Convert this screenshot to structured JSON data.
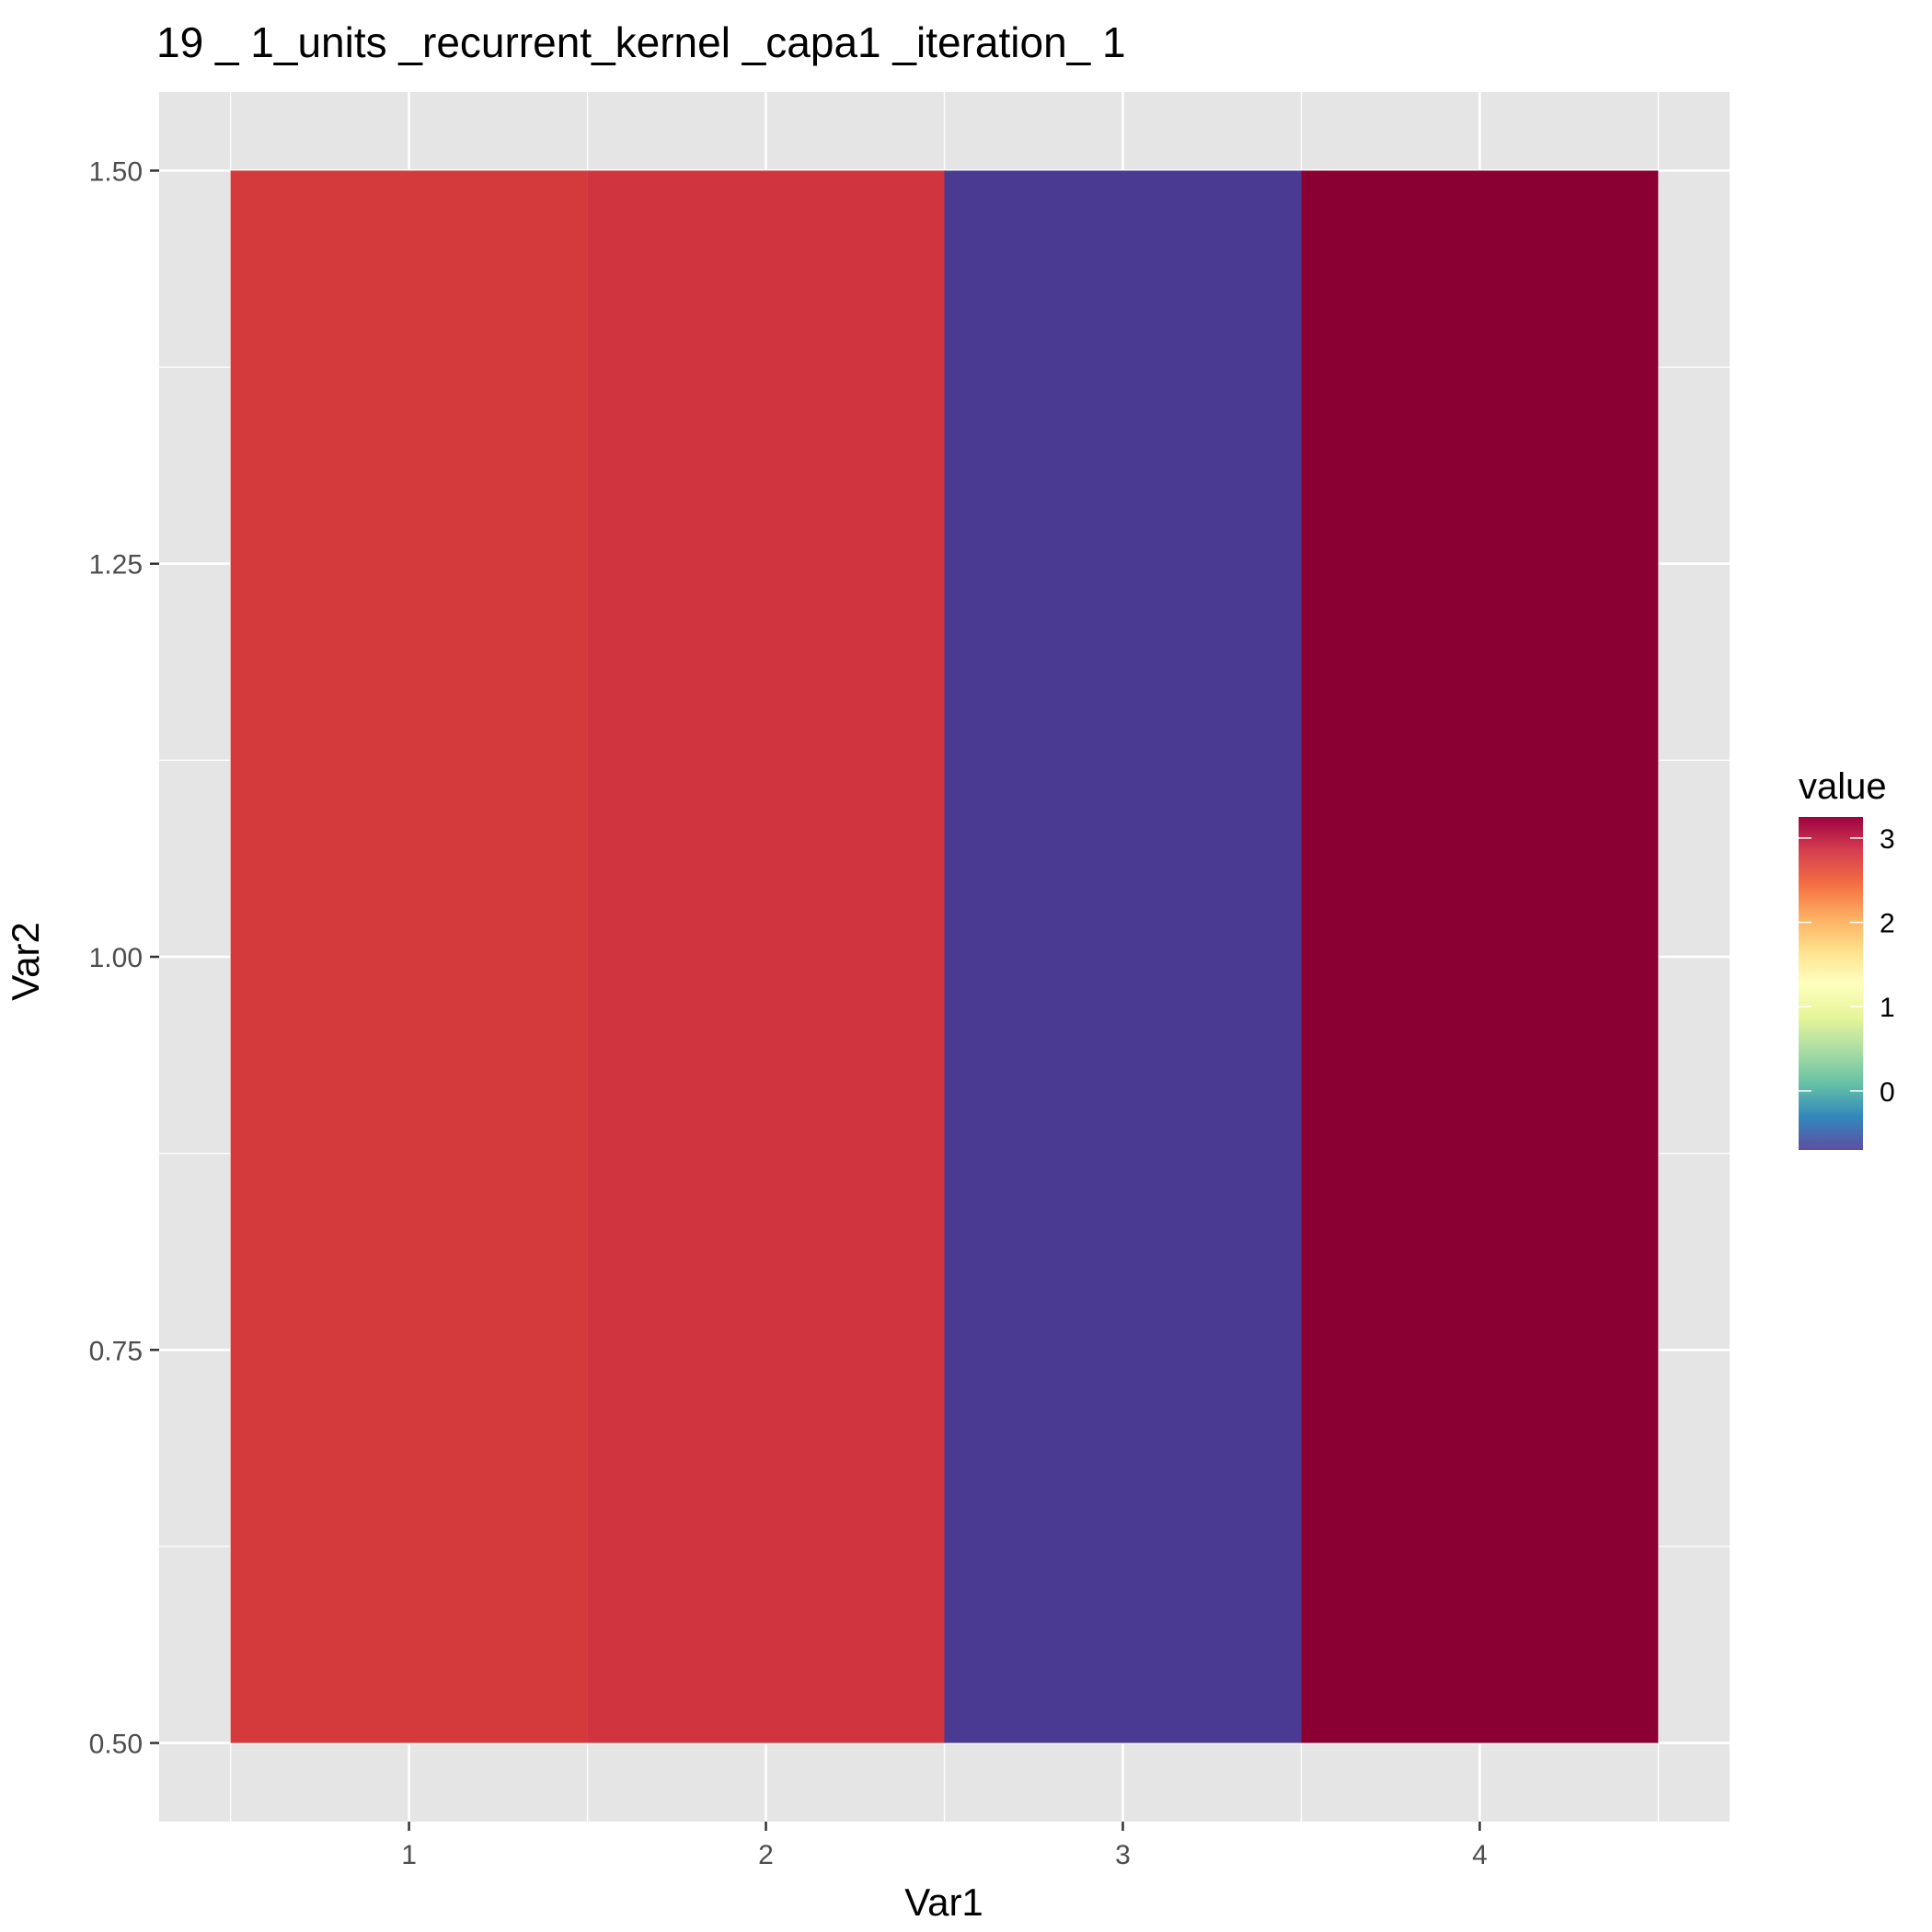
{
  "chart_data": {
    "type": "heatmap",
    "title": "19 _ 1_units _recurrent_kernel _capa1 _iteration_ 1",
    "xlabel": "Var1",
    "ylabel": "Var2",
    "x_ticks": [
      "1",
      "2",
      "3",
      "4"
    ],
    "y_ticks": [
      "0.50",
      "0.75",
      "1.00",
      "1.25",
      "1.50"
    ],
    "xlim": [
      0.3,
      4.7
    ],
    "ylim": [
      0.45,
      1.55
    ],
    "cells": [
      {
        "x": 1,
        "y": 1,
        "value": 2.85
      },
      {
        "x": 2,
        "y": 1,
        "value": 2.9
      },
      {
        "x": 3,
        "y": 1,
        "value": -0.7
      },
      {
        "x": 4,
        "y": 1,
        "value": 3.25
      }
    ],
    "grid": true,
    "legend": {
      "title": "value",
      "position": "right",
      "ticks": [
        "0",
        "1",
        "2",
        "3"
      ],
      "min": -0.7,
      "max": 3.25
    },
    "colors": {
      "panel_background": "#e5e5e5",
      "grid_line": "#ffffff",
      "cell_1": "#d43a3b",
      "cell_2": "#d0343e",
      "cell_3": "#4a3a91",
      "cell_4": "#8a0032"
    }
  }
}
